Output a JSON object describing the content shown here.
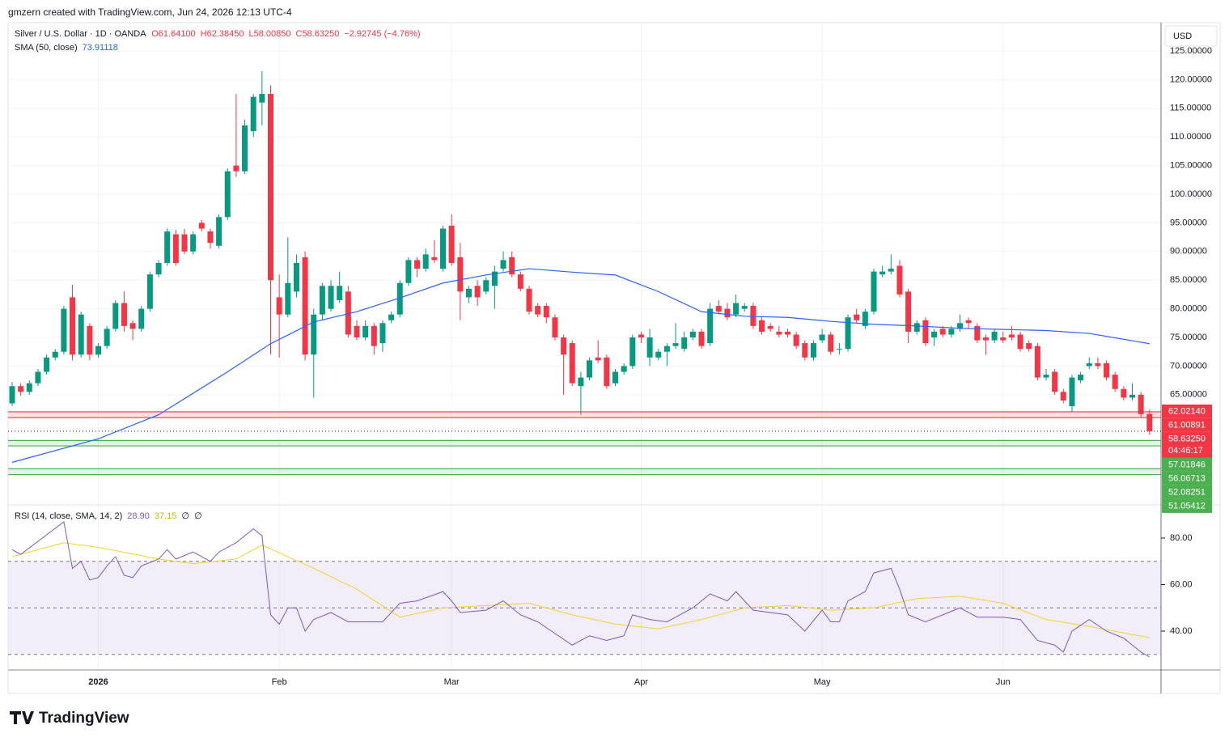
{
  "chart_data": {
    "type": "candlestick",
    "attribution": "gmzern created with TradingView.com, Jun 24, 2026 12:13 UTC-4",
    "title": "Silver / U.S. Dollar · 1D · OANDA",
    "ohlc_legend": [
      "O61.64100",
      "H62.38450",
      "L58.00850",
      "C58.63250",
      "−2.92745 (−4.76%)"
    ],
    "currency": "USD",
    "logo": "TradingView",
    "up_color": "#089981",
    "down_color": "#f23645",
    "categories": [
      null,
      null,
      null,
      null,
      null,
      null,
      null,
      null,
      null,
      null,
      "2026",
      null,
      null,
      null,
      null,
      null,
      null,
      null,
      null,
      null,
      null,
      null,
      null,
      null,
      null,
      null,
      null,
      null,
      null,
      null,
      null,
      "Feb",
      null,
      null,
      null,
      null,
      null,
      null,
      null,
      null,
      null,
      null,
      null,
      null,
      null,
      null,
      null,
      null,
      null,
      null,
      null,
      "Mar",
      null,
      null,
      null,
      null,
      null,
      null,
      null,
      null,
      null,
      null,
      null,
      null,
      null,
      null,
      null,
      null,
      null,
      null,
      null,
      null,
      null,
      "Apr",
      null,
      null,
      null,
      null,
      null,
      null,
      null,
      null,
      null,
      null,
      null,
      null,
      null,
      null,
      null,
      null,
      null,
      null,
      null,
      null,
      "May",
      null,
      null,
      null,
      null,
      null,
      null,
      null,
      null,
      null,
      null,
      null,
      null,
      null,
      null,
      null,
      null,
      null,
      null,
      null,
      null,
      "Jun",
      null,
      null,
      null,
      null,
      null,
      null,
      null,
      null,
      null,
      null,
      null,
      null,
      null,
      null,
      null,
      null,
      null
    ],
    "ohlc": [
      [
        63.5,
        67.2,
        63,
        66.5
      ],
      [
        66.5,
        67,
        64.8,
        65.5
      ],
      [
        65.5,
        67.5,
        65,
        67
      ],
      [
        67,
        69.5,
        66.5,
        69
      ],
      [
        69,
        72,
        68.5,
        71.5
      ],
      [
        71.5,
        73,
        71,
        72.5
      ],
      [
        72.5,
        80.5,
        72,
        80
      ],
      [
        82,
        84.2,
        71,
        72
      ],
      [
        72,
        79.5,
        71.5,
        79
      ],
      [
        77,
        77.5,
        71,
        72
      ],
      [
        72,
        74,
        71.5,
        73.5
      ],
      [
        73.5,
        77,
        73,
        76.5
      ],
      [
        76.5,
        81.5,
        76,
        81
      ],
      [
        81,
        83,
        76,
        77
      ],
      [
        77.5,
        78,
        74.5,
        76.5
      ],
      [
        76.5,
        80.5,
        76,
        80
      ],
      [
        80,
        86.5,
        79.5,
        86
      ],
      [
        86,
        88.5,
        85.5,
        88
      ],
      [
        88,
        94,
        87.5,
        93.5
      ],
      [
        93,
        93.8,
        87.5,
        88
      ],
      [
        93,
        94,
        89.5,
        90
      ],
      [
        90,
        93.5,
        89.5,
        93
      ],
      [
        95,
        95.5,
        93.5,
        94
      ],
      [
        93.5,
        94,
        90.5,
        91.5
      ],
      [
        91,
        96.5,
        90.5,
        96
      ],
      [
        96,
        104.5,
        95.5,
        104
      ],
      [
        105,
        117.5,
        103,
        104
      ],
      [
        104,
        113,
        103.5,
        112
      ],
      [
        111,
        117.5,
        110,
        117
      ],
      [
        116,
        121.5,
        112,
        117.5
      ],
      [
        117.5,
        119,
        72,
        85
      ],
      [
        82,
        86,
        71.5,
        79
      ],
      [
        79,
        92.5,
        78.5,
        84.5
      ],
      [
        83,
        89.5,
        82,
        88
      ],
      [
        89,
        90,
        71,
        72
      ],
      [
        72,
        80,
        64.5,
        79
      ],
      [
        79,
        84.5,
        78,
        84
      ],
      [
        80,
        85,
        79.5,
        84
      ],
      [
        81.5,
        86.5,
        81,
        84
      ],
      [
        83,
        84,
        75,
        75.5
      ],
      [
        77,
        78,
        74.5,
        75
      ],
      [
        75,
        78,
        74.5,
        77
      ],
      [
        77,
        77.5,
        72,
        73.5
      ],
      [
        74,
        78,
        72.5,
        77.5
      ],
      [
        78,
        79.5,
        77.5,
        79
      ],
      [
        79,
        85,
        78.5,
        84.5
      ],
      [
        84.5,
        89,
        84,
        88.5
      ],
      [
        88.5,
        89,
        85.5,
        87
      ],
      [
        87,
        90.5,
        86.5,
        89.5
      ],
      [
        89,
        92,
        88,
        88.5
      ],
      [
        87,
        94.5,
        86.5,
        94
      ],
      [
        94.5,
        96.5,
        87.5,
        88
      ],
      [
        89,
        91.5,
        78,
        83
      ],
      [
        82,
        84,
        81,
        83.5
      ],
      [
        84,
        85,
        80.5,
        82
      ],
      [
        83,
        85.5,
        82.5,
        85
      ],
      [
        84,
        87.5,
        80,
        86.5
      ],
      [
        87,
        90,
        86.5,
        88.5
      ],
      [
        89,
        90,
        85.5,
        86
      ],
      [
        86,
        86.5,
        83,
        83.5
      ],
      [
        83.5,
        84,
        79,
        79.5
      ],
      [
        80.5,
        81,
        78.5,
        79
      ],
      [
        80.5,
        81,
        77.5,
        78.5
      ],
      [
        78.5,
        79,
        74.5,
        75
      ],
      [
        75,
        75.5,
        65,
        72
      ],
      [
        74,
        74.5,
        66.5,
        67
      ],
      [
        66.5,
        69,
        61.5,
        68
      ],
      [
        68,
        71.5,
        67.5,
        71
      ],
      [
        71.5,
        74.5,
        70.5,
        71
      ],
      [
        71.5,
        72,
        66,
        66.5
      ],
      [
        67,
        69.5,
        66.5,
        69
      ],
      [
        69,
        70.5,
        68.5,
        70
      ],
      [
        70,
        75.5,
        69.5,
        75
      ],
      [
        75.5,
        76,
        74,
        75
      ],
      [
        71.5,
        76.5,
        70,
        75
      ],
      [
        71.5,
        73,
        71,
        72.5
      ],
      [
        72.5,
        74,
        70,
        73.5
      ],
      [
        73.5,
        77.5,
        73,
        74
      ],
      [
        73,
        76,
        72.5,
        75
      ],
      [
        75,
        76.5,
        74.5,
        76
      ],
      [
        76,
        76.5,
        73,
        73.5
      ],
      [
        74,
        81,
        73.5,
        80
      ],
      [
        80.5,
        81.5,
        79,
        79.5
      ],
      [
        80,
        81,
        78,
        78.5
      ],
      [
        79,
        82.5,
        78.5,
        81
      ],
      [
        80,
        81,
        79.5,
        80.5
      ],
      [
        80.5,
        81,
        76.5,
        77
      ],
      [
        78,
        78.5,
        75.5,
        76
      ],
      [
        77,
        77.5,
        76,
        76.5
      ],
      [
        76,
        77,
        75,
        75.5
      ],
      [
        76,
        76.5,
        75,
        75.5
      ],
      [
        75.5,
        76,
        73,
        73.5
      ],
      [
        74,
        74.5,
        71,
        71.5
      ],
      [
        71.5,
        74.5,
        71,
        74
      ],
      [
        74.5,
        76.5,
        74,
        75.5
      ],
      [
        75.5,
        76,
        72,
        72.5
      ],
      [
        73,
        74,
        72,
        73
      ],
      [
        73,
        79,
        72.5,
        78.5
      ],
      [
        79,
        80,
        77.5,
        78
      ],
      [
        77,
        80,
        76.5,
        79.5
      ],
      [
        79.5,
        87,
        79,
        86.5
      ],
      [
        86,
        87.5,
        85.5,
        86.5
      ],
      [
        86.5,
        89.5,
        86,
        87
      ],
      [
        87.5,
        88.5,
        82,
        82.5
      ],
      [
        83,
        83.5,
        74,
        76
      ],
      [
        76,
        78,
        75.5,
        77.5
      ],
      [
        78,
        78.5,
        73.5,
        74
      ],
      [
        75,
        76.5,
        73.5,
        76
      ],
      [
        76.5,
        77,
        75,
        75.5
      ],
      [
        75.5,
        77,
        75,
        76.5
      ],
      [
        76.5,
        79,
        76,
        77.5
      ],
      [
        78,
        78.5,
        76.5,
        77.5
      ],
      [
        77,
        77.5,
        74,
        74.5
      ],
      [
        75,
        75.5,
        72,
        74.5
      ],
      [
        74.5,
        76.5,
        74,
        76
      ],
      [
        75,
        76,
        74,
        74.5
      ],
      [
        75.5,
        77,
        74.5,
        75
      ],
      [
        75.5,
        76,
        72.5,
        73
      ],
      [
        74,
        74.5,
        72.5,
        73
      ],
      [
        73.5,
        74,
        67.5,
        68
      ],
      [
        68,
        69.5,
        67.5,
        68.5
      ],
      [
        69,
        69.5,
        65,
        65.5
      ],
      [
        65.5,
        66,
        63.5,
        64
      ],
      [
        63,
        68.5,
        62,
        68
      ],
      [
        67.5,
        69,
        67,
        68.5
      ],
      [
        70,
        71.5,
        69.5,
        70.5
      ],
      [
        70.5,
        71.5,
        69.5,
        70
      ],
      [
        70.5,
        71,
        67.5,
        68
      ],
      [
        68.5,
        69,
        65.5,
        66
      ],
      [
        66,
        66.5,
        64,
        64.5
      ],
      [
        64.5,
        67,
        64,
        65
      ],
      [
        65,
        65.5,
        61,
        61.6
      ],
      [
        61.641,
        62.3845,
        58.0085,
        58.6325
      ]
    ],
    "sma": {
      "name": "SMA (50, close)",
      "value_label": "73.91118",
      "color": "#2962ff",
      "x": [
        0,
        10,
        17,
        25,
        30,
        35,
        40,
        45,
        50,
        55,
        60,
        65,
        70,
        75,
        80,
        85,
        90,
        95,
        100,
        105,
        110,
        115,
        120,
        125,
        132
      ],
      "values": [
        53.2,
        57.3,
        61.5,
        69,
        73.9,
        77.7,
        79.5,
        81.9,
        84.5,
        85.9,
        87,
        86.4,
        85.9,
        83,
        79.5,
        78.7,
        78.5,
        77.8,
        77.3,
        77,
        76.6,
        76.4,
        76.2,
        75.7,
        73.91118
      ]
    },
    "ylim": [
      46.05,
      129.66
    ],
    "yticks": [
      {
        "value": 65,
        "label": "65.00000"
      },
      {
        "value": 70,
        "label": "70.00000"
      },
      {
        "value": 75,
        "label": "75.00000"
      },
      {
        "value": 80,
        "label": "80.00000"
      },
      {
        "value": 85,
        "label": "85.00000"
      },
      {
        "value": 90,
        "label": "90.00000"
      },
      {
        "value": 95,
        "label": "95.00000"
      },
      {
        "value": 100,
        "label": "100.00000"
      },
      {
        "value": 105,
        "label": "105.00000"
      },
      {
        "value": 110,
        "label": "110.00000"
      },
      {
        "value": 115,
        "label": "115.00000"
      },
      {
        "value": 120,
        "label": "120.00000"
      },
      {
        "value": 125,
        "label": "125.00000"
      }
    ],
    "zones": [
      {
        "values": [
          62.0214,
          61.00891
        ],
        "value_labels": [
          "62.02140",
          "61.00891"
        ],
        "color": "#f23645"
      },
      {
        "values": [
          57.01846,
          56.06713
        ],
        "value_labels": [
          "57.01846",
          "56.06713"
        ],
        "color": "#4caf50"
      },
      {
        "values": [
          52.08251,
          51.05412
        ],
        "value_labels": [
          "52.08251",
          "51.05412"
        ],
        "color": "#4caf50"
      }
    ],
    "last": {
      "value": 58.6325,
      "label": "58.63250",
      "countdown": "04:46:17"
    },
    "rsi": {
      "name": "RSI (14, close, SMA, 14, 2)",
      "value_label": "28.90",
      "sma_label": "37.15",
      "extra": [
        "∅",
        "∅"
      ],
      "color": "#7e57c2",
      "sma_color": "#f5d130",
      "x": [
        0,
        1,
        6,
        7,
        8,
        9,
        10,
        11,
        12,
        13,
        14,
        15,
        17,
        18,
        19,
        21,
        23,
        24,
        26,
        28,
        29,
        30,
        31,
        32,
        33,
        34,
        35,
        37,
        39,
        41,
        43,
        45,
        47,
        50,
        51,
        52,
        55,
        57,
        59,
        61,
        63,
        65,
        67,
        69,
        71,
        72,
        74,
        76,
        79,
        81,
        83,
        84,
        86,
        88,
        90,
        92,
        94,
        95,
        96,
        97,
        99,
        100,
        102,
        103,
        104,
        106,
        108,
        110,
        112,
        115,
        117,
        119,
        121,
        122,
        123,
        125,
        127,
        129,
        131,
        132
      ],
      "values": [
        75,
        73,
        87,
        67,
        70,
        62,
        63,
        68,
        72,
        64,
        63,
        68,
        71,
        75,
        71,
        74,
        70,
        74,
        78,
        84,
        81,
        47,
        43,
        50,
        50,
        40,
        45,
        48,
        44,
        44,
        44,
        52,
        53,
        57,
        53,
        48,
        49,
        53,
        47,
        44,
        39,
        34,
        38,
        36,
        38,
        47,
        45,
        44,
        50,
        56,
        53,
        57,
        49,
        48,
        47,
        40,
        49,
        44,
        44,
        53,
        57,
        65,
        67,
        58,
        47,
        44,
        47,
        50,
        46,
        46,
        45,
        36,
        34,
        31,
        40,
        45,
        40,
        37,
        31,
        28.9
      ],
      "sma_x": [
        0,
        6,
        10,
        17,
        21,
        26,
        29,
        35,
        40,
        45,
        50,
        55,
        60,
        65,
        70,
        75,
        80,
        85,
        90,
        95,
        100,
        105,
        110,
        115,
        120,
        125,
        132
      ],
      "sma_values": [
        72,
        78,
        76,
        71,
        69,
        71,
        77,
        67,
        58,
        46,
        50,
        51,
        52,
        47,
        43,
        41,
        45,
        50,
        51,
        49,
        50,
        54,
        55,
        52,
        45,
        42,
        37.15
      ],
      "ylim": [
        23.3,
        93.9
      ],
      "yticks": [
        {
          "value": 40,
          "label": "40.00"
        },
        {
          "value": 60,
          "label": "60.00"
        },
        {
          "value": 80,
          "label": "80.00"
        }
      ],
      "levels": [
        30,
        50,
        70
      ]
    }
  }
}
